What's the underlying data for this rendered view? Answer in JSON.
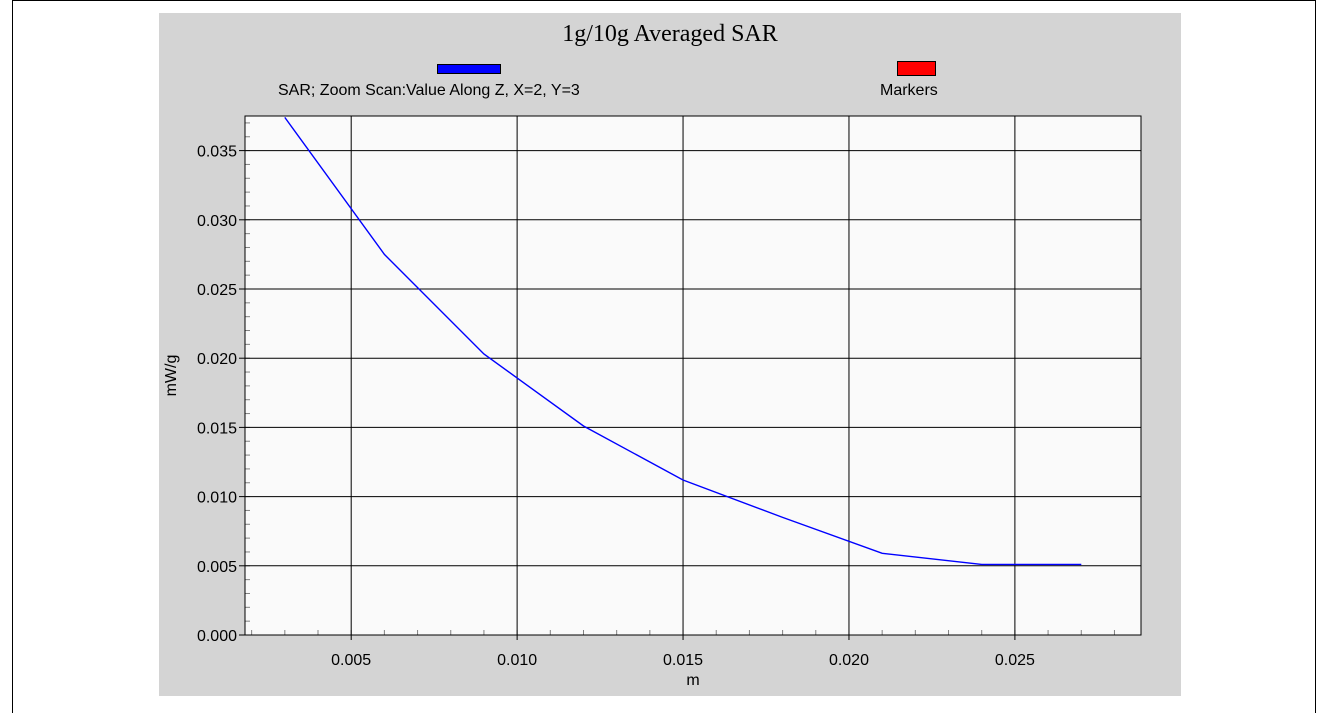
{
  "chart_data": {
    "type": "line",
    "title": "1g/10g Averaged SAR",
    "xlabel": "m",
    "ylabel": "mW/g",
    "xlim": [
      0.0018,
      0.0288
    ],
    "ylim": [
      0,
      0.0375
    ],
    "xticks": [
      "0.005",
      "0.010",
      "0.015",
      "0.020",
      "0.025"
    ],
    "xtick_values": [
      0.005,
      0.01,
      0.015,
      0.02,
      0.025
    ],
    "yticks": [
      "0.000",
      "0.005",
      "0.010",
      "0.015",
      "0.020",
      "0.025",
      "0.030",
      "0.035"
    ],
    "ytick_values": [
      0,
      0.005,
      0.01,
      0.015,
      0.02,
      0.025,
      0.03,
      0.035
    ],
    "grid": true,
    "legend_position": "top",
    "series": [
      {
        "name": "SAR; Zoom Scan:Value Along Z, X=2, Y=3",
        "color": "#0000ff",
        "x": [
          0.003,
          0.006,
          0.009,
          0.012,
          0.015,
          0.018,
          0.021,
          0.024,
          0.027
        ],
        "y": [
          0.0374,
          0.0275,
          0.0203,
          0.0151,
          0.0112,
          0.0085,
          0.0059,
          0.0051,
          0.0051
        ]
      },
      {
        "name": "Markers",
        "color": "#ff0000",
        "x": [],
        "y": []
      }
    ]
  }
}
